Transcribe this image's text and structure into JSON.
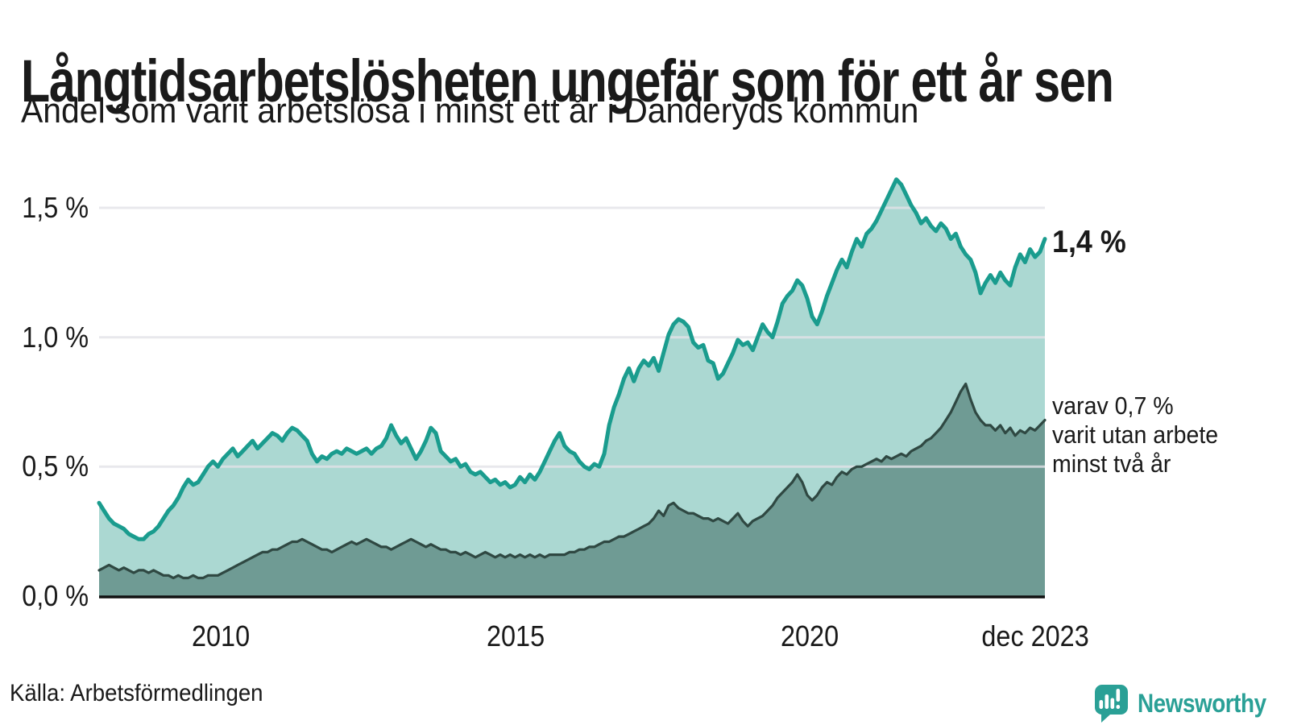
{
  "header": {
    "title": "Långtidsarbetslösheten ungefär som för ett år sen",
    "subtitle": "Andel som varit arbetslösa i minst ett år i Danderyds kommun"
  },
  "annotations": {
    "end_value_label": "1,4 %",
    "sub_lines": [
      "varav 0,7 %",
      "varit utan arbete",
      "minst två år"
    ]
  },
  "footer": {
    "source": "Källa: Arbetsförmedlingen",
    "brand": "Newsworthy"
  },
  "colors": {
    "line_1yr": "#1a9c8e",
    "fill_1yr": "#abd8d2",
    "line_2yr": "#2f4842",
    "fill_2yr": "#6f9b94",
    "gridline": "#e2e2e7",
    "axis_line": "#111111",
    "text": "#1a1a1a",
    "brand_teal": "#2aa096"
  },
  "chart_data": {
    "type": "area",
    "title": "Långtidsarbetslösheten ungefär som för ett år sen",
    "subtitle": "Andel som varit arbetslösa i minst ett år i Danderyds kommun",
    "unit": "%",
    "x_start": "2008-01",
    "x_end": "2023-12",
    "x_interval": "monthly",
    "x_tick_labels": [
      "2010",
      "2015",
      "2020",
      "dec 2023"
    ],
    "y_tick_labels": [
      "0,0 %",
      "0,5 %",
      "1,0 %",
      "1,5 %"
    ],
    "y_ticks": [
      0,
      0.5,
      1.0,
      1.5
    ],
    "ylim": [
      0,
      1.5
    ],
    "grid": true,
    "legend_position": "right-annotations",
    "series": [
      {
        "name": "Andel arbetslösa minst ett år",
        "end_label": "1,4 %",
        "color": "#1a9c8e",
        "fill": "#abd8d2",
        "values": [
          0.36,
          0.33,
          0.3,
          0.28,
          0.27,
          0.26,
          0.24,
          0.23,
          0.22,
          0.22,
          0.24,
          0.25,
          0.27,
          0.3,
          0.33,
          0.35,
          0.38,
          0.42,
          0.45,
          0.43,
          0.44,
          0.47,
          0.5,
          0.52,
          0.5,
          0.53,
          0.55,
          0.57,
          0.54,
          0.56,
          0.58,
          0.6,
          0.57,
          0.59,
          0.61,
          0.63,
          0.62,
          0.6,
          0.63,
          0.65,
          0.64,
          0.62,
          0.6,
          0.55,
          0.52,
          0.54,
          0.53,
          0.55,
          0.56,
          0.55,
          0.57,
          0.56,
          0.55,
          0.56,
          0.57,
          0.55,
          0.57,
          0.58,
          0.61,
          0.66,
          0.62,
          0.59,
          0.61,
          0.57,
          0.53,
          0.56,
          0.6,
          0.65,
          0.63,
          0.56,
          0.54,
          0.52,
          0.53,
          0.5,
          0.51,
          0.48,
          0.47,
          0.48,
          0.46,
          0.44,
          0.45,
          0.43,
          0.44,
          0.42,
          0.43,
          0.46,
          0.44,
          0.47,
          0.45,
          0.48,
          0.52,
          0.56,
          0.6,
          0.63,
          0.58,
          0.56,
          0.55,
          0.52,
          0.5,
          0.49,
          0.51,
          0.5,
          0.55,
          0.66,
          0.73,
          0.78,
          0.84,
          0.88,
          0.83,
          0.88,
          0.91,
          0.89,
          0.92,
          0.87,
          0.94,
          1.01,
          1.05,
          1.07,
          1.06,
          1.04,
          0.98,
          0.96,
          0.97,
          0.91,
          0.9,
          0.84,
          0.86,
          0.9,
          0.94,
          0.99,
          0.97,
          0.98,
          0.95,
          1.0,
          1.05,
          1.02,
          1.0,
          1.06,
          1.13,
          1.16,
          1.18,
          1.22,
          1.2,
          1.15,
          1.08,
          1.05,
          1.1,
          1.16,
          1.21,
          1.26,
          1.3,
          1.27,
          1.33,
          1.38,
          1.35,
          1.4,
          1.42,
          1.45,
          1.49,
          1.53,
          1.57,
          1.61,
          1.59,
          1.55,
          1.51,
          1.48,
          1.44,
          1.46,
          1.43,
          1.41,
          1.44,
          1.42,
          1.38,
          1.4,
          1.35,
          1.32,
          1.3,
          1.25,
          1.17,
          1.21,
          1.24,
          1.21,
          1.25,
          1.22,
          1.2,
          1.27,
          1.32,
          1.29,
          1.34,
          1.31,
          1.33,
          1.38
        ]
      },
      {
        "name": "varav arbetslösa minst två år",
        "end_label": "varav 0,7 % varit utan arbete minst två år",
        "color": "#2f4842",
        "fill": "#6f9b94",
        "values": [
          0.1,
          0.11,
          0.12,
          0.11,
          0.1,
          0.11,
          0.1,
          0.09,
          0.1,
          0.1,
          0.09,
          0.1,
          0.09,
          0.08,
          0.08,
          0.07,
          0.08,
          0.07,
          0.07,
          0.08,
          0.07,
          0.07,
          0.08,
          0.08,
          0.08,
          0.09,
          0.1,
          0.11,
          0.12,
          0.13,
          0.14,
          0.15,
          0.16,
          0.17,
          0.17,
          0.18,
          0.18,
          0.19,
          0.2,
          0.21,
          0.21,
          0.22,
          0.21,
          0.2,
          0.19,
          0.18,
          0.18,
          0.17,
          0.18,
          0.19,
          0.2,
          0.21,
          0.2,
          0.21,
          0.22,
          0.21,
          0.2,
          0.19,
          0.19,
          0.18,
          0.19,
          0.2,
          0.21,
          0.22,
          0.21,
          0.2,
          0.19,
          0.2,
          0.19,
          0.18,
          0.18,
          0.17,
          0.17,
          0.16,
          0.17,
          0.16,
          0.15,
          0.16,
          0.17,
          0.16,
          0.15,
          0.16,
          0.15,
          0.16,
          0.15,
          0.16,
          0.15,
          0.16,
          0.15,
          0.16,
          0.15,
          0.16,
          0.16,
          0.16,
          0.16,
          0.17,
          0.17,
          0.18,
          0.18,
          0.19,
          0.19,
          0.2,
          0.21,
          0.21,
          0.22,
          0.23,
          0.23,
          0.24,
          0.25,
          0.26,
          0.27,
          0.28,
          0.3,
          0.33,
          0.31,
          0.35,
          0.36,
          0.34,
          0.33,
          0.32,
          0.32,
          0.31,
          0.3,
          0.3,
          0.29,
          0.3,
          0.29,
          0.28,
          0.3,
          0.32,
          0.29,
          0.27,
          0.29,
          0.3,
          0.31,
          0.33,
          0.35,
          0.38,
          0.4,
          0.42,
          0.44,
          0.47,
          0.44,
          0.39,
          0.37,
          0.39,
          0.42,
          0.44,
          0.43,
          0.46,
          0.48,
          0.47,
          0.49,
          0.5,
          0.5,
          0.51,
          0.52,
          0.53,
          0.52,
          0.54,
          0.53,
          0.54,
          0.55,
          0.54,
          0.56,
          0.57,
          0.58,
          0.6,
          0.61,
          0.63,
          0.65,
          0.68,
          0.71,
          0.75,
          0.79,
          0.82,
          0.76,
          0.71,
          0.68,
          0.66,
          0.66,
          0.64,
          0.66,
          0.63,
          0.65,
          0.62,
          0.64,
          0.63,
          0.65,
          0.64,
          0.66,
          0.68
        ]
      }
    ]
  }
}
